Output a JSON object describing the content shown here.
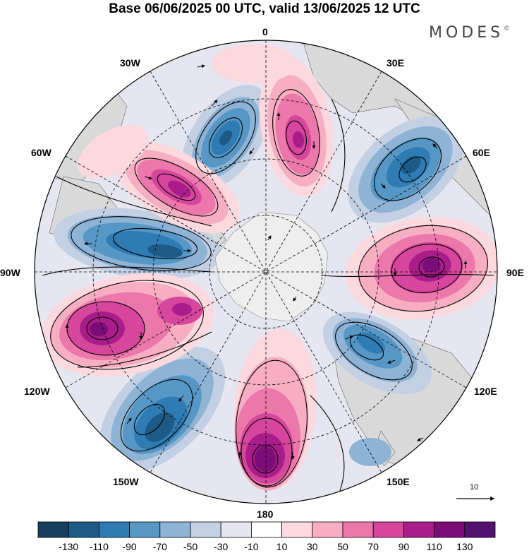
{
  "title": "Base 06/06/2025 00 UTC, valid 13/06/2025 12 UTC",
  "brand": {
    "name": "MODES",
    "mark": "©"
  },
  "longitude_labels": {
    "l0": "0",
    "l30e": "30E",
    "l60e": "60E",
    "l90e": "90E",
    "l120e": "120E",
    "l150e": "150E",
    "l180": "180",
    "l150w": "150W",
    "l120w": "120W",
    "l90w": "90W",
    "l60w": "60W",
    "l30w": "30W"
  },
  "vector_reference": {
    "value": "10"
  },
  "colorbar": {
    "ticks": [
      "-130",
      "-110",
      "-90",
      "-70",
      "-50",
      "-30",
      "-10",
      "10",
      "30",
      "50",
      "70",
      "90",
      "110",
      "130"
    ],
    "colors": [
      "#17405f",
      "#1d5b86",
      "#2f7bb3",
      "#5797c5",
      "#8eb3d5",
      "#c3d0e4",
      "#e6e6f1",
      "#ffffff",
      "#fbd9de",
      "#f7aec2",
      "#ec78ab",
      "#d6469d",
      "#a81d89",
      "#7a0d78",
      "#531270"
    ]
  },
  "colors": {
    "land": "#d9d9d9",
    "antarctica": "#eeeeee",
    "outline": "#000000"
  }
}
